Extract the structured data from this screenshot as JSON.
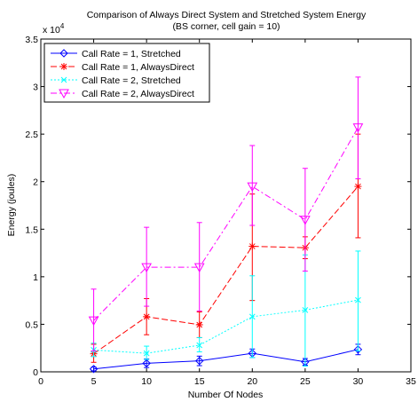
{
  "chart_data": {
    "type": "line",
    "title": "Comparison of Always Direct System and Stretched System Energy",
    "subtitle": "(BS corner, cell gain = 10)",
    "xlabel": "Number Of Nodes",
    "ylabel": "Energy (joules)",
    "y_multiplier_label": "x 10",
    "y_multiplier_exponent": "4",
    "xlim": [
      0,
      35
    ],
    "ylim": [
      0,
      35000
    ],
    "x_ticks": [
      0,
      5,
      10,
      15,
      20,
      25,
      30,
      35
    ],
    "x_tick_labels": [
      "0",
      "5",
      "10",
      "15",
      "20",
      "25",
      "30",
      "35"
    ],
    "y_ticks": [
      0,
      5000,
      10000,
      15000,
      20000,
      25000,
      30000,
      35000
    ],
    "y_tick_labels": [
      "0",
      "0.5",
      "1",
      "1.5",
      "2",
      "2.5",
      "3",
      "3.5"
    ],
    "grid": false,
    "legend_position": "top-left",
    "x": [
      5,
      10,
      15,
      20,
      25,
      30
    ],
    "series": [
      {
        "name": "Call Rate = 1, Stretched",
        "color": "#0000ff",
        "dash": "solid",
        "marker": "diamond",
        "values": [
          300,
          900,
          1150,
          1950,
          1050,
          2350
        ],
        "error": [
          [
            100,
            500
          ],
          [
            450,
            1350
          ],
          [
            650,
            1650
          ],
          [
            1500,
            2400
          ],
          [
            700,
            1400
          ],
          [
            1800,
            2900
          ]
        ]
      },
      {
        "name": "Call Rate = 1, AlwaysDirect",
        "color": "#ff0000",
        "dash": "dashed",
        "marker": "star",
        "values": [
          1900,
          5800,
          4950,
          13200,
          13050,
          19500
        ],
        "error": [
          [
            1000,
            2900
          ],
          [
            3900,
            7700
          ],
          [
            3600,
            6300
          ],
          [
            7500,
            18700
          ],
          [
            11900,
            14200
          ],
          [
            14100,
            25000
          ]
        ]
      },
      {
        "name": "Call Rate = 2, Stretched",
        "color": "#00ffff",
        "dash": "dotted",
        "marker": "x",
        "values": [
          2300,
          1950,
          2800,
          5800,
          6500,
          7550
        ],
        "error": [
          [
            1600,
            3000
          ],
          [
            1300,
            2700
          ],
          [
            2100,
            3600
          ],
          [
            1500,
            10100
          ],
          [
            600,
            12300
          ],
          [
            2200,
            12700
          ]
        ]
      },
      {
        "name": "Call Rate = 2, AlwaysDirect",
        "color": "#ff00ff",
        "dash": "dashdot",
        "marker": "triangle-down",
        "values": [
          5400,
          11000,
          11000,
          19500,
          16000,
          25700
        ],
        "error": [
          [
            2200,
            8700
          ],
          [
            6900,
            15200
          ],
          [
            6400,
            15700
          ],
          [
            15400,
            23800
          ],
          [
            10600,
            21400
          ],
          [
            20300,
            31000
          ]
        ]
      }
    ]
  }
}
